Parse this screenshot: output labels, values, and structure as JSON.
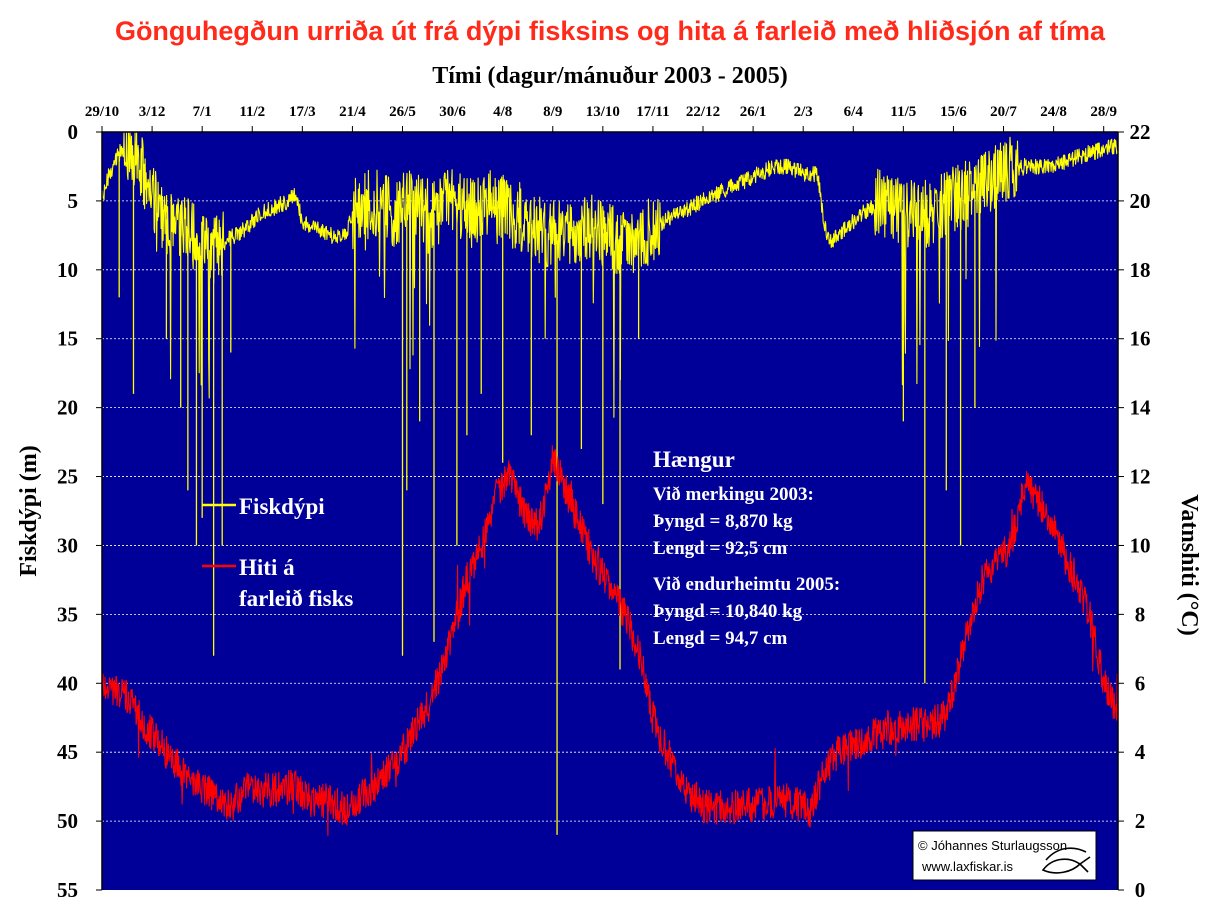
{
  "chart_data": {
    "type": "line",
    "title": "Gönguhegðun urriða út frá dýpi fisksins og hita á farleið með hliðsjón af tíma",
    "xlabel": "Tími (dagur/mánuður  2003 - 2005)",
    "ylabel_left": "Fiskdýpi (m)",
    "ylabel_right": "Vatnshiti (°C)",
    "y_left_range": [
      0,
      55
    ],
    "y_left_inverted": true,
    "y_left_ticks": [
      "0",
      "5",
      "10",
      "15",
      "20",
      "25",
      "30",
      "35",
      "40",
      "45",
      "50",
      "55"
    ],
    "y_right_range": [
      0,
      22
    ],
    "y_right_ticks": [
      "22",
      "20",
      "18",
      "16",
      "14",
      "12",
      "10",
      "8",
      "6",
      "4",
      "2",
      "0"
    ],
    "x_ticks": [
      "29/10",
      "3/12",
      "7/1",
      "11/2",
      "17/3",
      "21/4",
      "26/5",
      "30/6",
      "4/8",
      "8/9",
      "13/10",
      "17/11",
      "22/12",
      "26/1",
      "2/3",
      "6/4",
      "11/5",
      "15/6",
      "20/7",
      "24/8",
      "28/9"
    ],
    "x_tick_day_offsets": [
      0,
      35,
      70,
      105,
      140,
      175,
      210,
      245,
      280,
      315,
      350,
      385,
      420,
      455,
      490,
      525,
      560,
      595,
      630,
      665,
      700
    ],
    "x_range_days": [
      0,
      710
    ],
    "grid": "horizontal dashed",
    "background_color": "#000099",
    "series": [
      {
        "name": "Fiskdýpi",
        "axis": "left",
        "color": "#ffff00",
        "x": [
          0,
          5,
          15,
          25,
          35,
          50,
          60,
          68,
          75,
          85,
          100,
          110,
          120,
          130,
          135,
          140,
          150,
          160,
          170,
          175,
          190,
          205,
          215,
          230,
          245,
          260,
          275,
          290,
          305,
          315,
          330,
          345,
          360,
          375,
          385,
          400,
          420,
          440,
          460,
          470,
          480,
          490,
          500,
          505,
          510,
          520,
          530,
          545,
          560,
          575,
          595,
          615,
          630,
          645,
          665,
          690,
          710
        ],
        "y": [
          5,
          3,
          1,
          2,
          5,
          7,
          7,
          8,
          9,
          8,
          7,
          6,
          5.5,
          5,
          4.5,
          6.5,
          7,
          7.5,
          7.5,
          6,
          5,
          6,
          5,
          6,
          5,
          6,
          5,
          6,
          7,
          7.5,
          7,
          7,
          8,
          8,
          7,
          6,
          5,
          4,
          3,
          2.5,
          2.5,
          3,
          3,
          7,
          8,
          7,
          6,
          5,
          6,
          6,
          5,
          4,
          3,
          2.5,
          2.5,
          1.5,
          1
        ]
      },
      {
        "name": "Hiti á farleið fisks",
        "axis": "right",
        "color": "#ff0000",
        "x": [
          0,
          10,
          20,
          30,
          45,
          60,
          75,
          90,
          100,
          120,
          135,
          145,
          160,
          170,
          190,
          210,
          230,
          245,
          255,
          265,
          275,
          285,
          295,
          305,
          315,
          330,
          345,
          360,
          375,
          385,
          395,
          405,
          420,
          440,
          460,
          480,
          495,
          505,
          515,
          535,
          560,
          575,
          590,
          605,
          615,
          625,
          635,
          645,
          660,
          670,
          680,
          690,
          700,
          710
        ],
        "y": [
          6,
          5.8,
          5.5,
          4.8,
          4,
          3.3,
          2.8,
          2.4,
          2.9,
          2.9,
          3,
          2.6,
          2.6,
          2.3,
          3,
          4,
          5.5,
          7.5,
          9,
          10,
          11.5,
          12,
          11,
          10.5,
          12.5,
          11,
          9.5,
          8.5,
          7,
          5,
          4,
          3,
          2.4,
          2.4,
          2.5,
          2.6,
          2.3,
          3.5,
          4,
          4.4,
          4.8,
          4.8,
          5,
          7.5,
          9,
          9.5,
          10,
          11.8,
          11,
          10,
          9,
          8,
          6,
          5
        ]
      }
    ],
    "legend": {
      "position": "left-middle",
      "depth_label": "Fiskdýpi",
      "temp_label_line1": "Hiti á",
      "temp_label_line2": "farleið fisks"
    },
    "annotation": {
      "title": "Hængur",
      "tag_2003": "Við merkingu 2003:",
      "weight_2003": "Þyngd = 8,870 kg",
      "length_2003": "Lengd = 92,5 cm",
      "tag_2005": "Við endurheimtu 2005:",
      "weight_2005": "Þyngd = 10,840 kg",
      "length_2005": "Lengd = 94,7 cm"
    },
    "copyright": {
      "line1": "© Jóhannes Sturlaugsson",
      "line2": "www.laxfiskar.is",
      "logo": "fish-logo"
    }
  }
}
